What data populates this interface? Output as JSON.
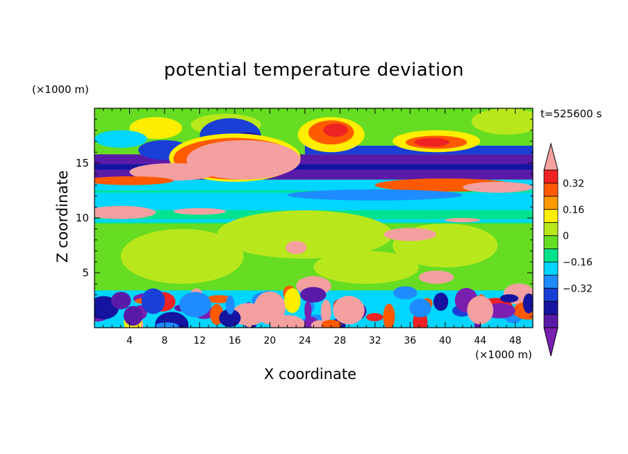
{
  "chart_data": {
    "type": "heatmap",
    "title": "potential temperature deviation",
    "xlabel": "X coordinate",
    "ylabel": "Z coordinate",
    "x_unit": "(×1000 m)",
    "y_unit": "(×1000 m)",
    "time_label": "t=525600 s",
    "xlim": [
      0,
      50
    ],
    "ylim": [
      0,
      20
    ],
    "x_ticks": [
      "4",
      "8",
      "12",
      "16",
      "20",
      "24",
      "28",
      "32",
      "36",
      "40",
      "44",
      "48"
    ],
    "y_ticks": [
      "5",
      "10",
      "15"
    ],
    "colorbar": {
      "levels": [
        -0.48,
        -0.4,
        -0.32,
        -0.24,
        -0.16,
        -0.08,
        0,
        0.08,
        0.16,
        0.24,
        0.32,
        0.4,
        0.48
      ],
      "labels": [
        "0.32",
        "0.16",
        "0",
        "−0.16",
        "−0.32"
      ],
      "colors": [
        "#7a1fb0",
        "#5a1aa8",
        "#1414a0",
        "#1a3fd6",
        "#1e8cff",
        "#00d6ff",
        "#00e38c",
        "#66dd22",
        "#b8e81c",
        "#ffee00",
        "#ff9900",
        "#ff5a00",
        "#ee2222",
        "#f4a0a0"
      ]
    }
  }
}
